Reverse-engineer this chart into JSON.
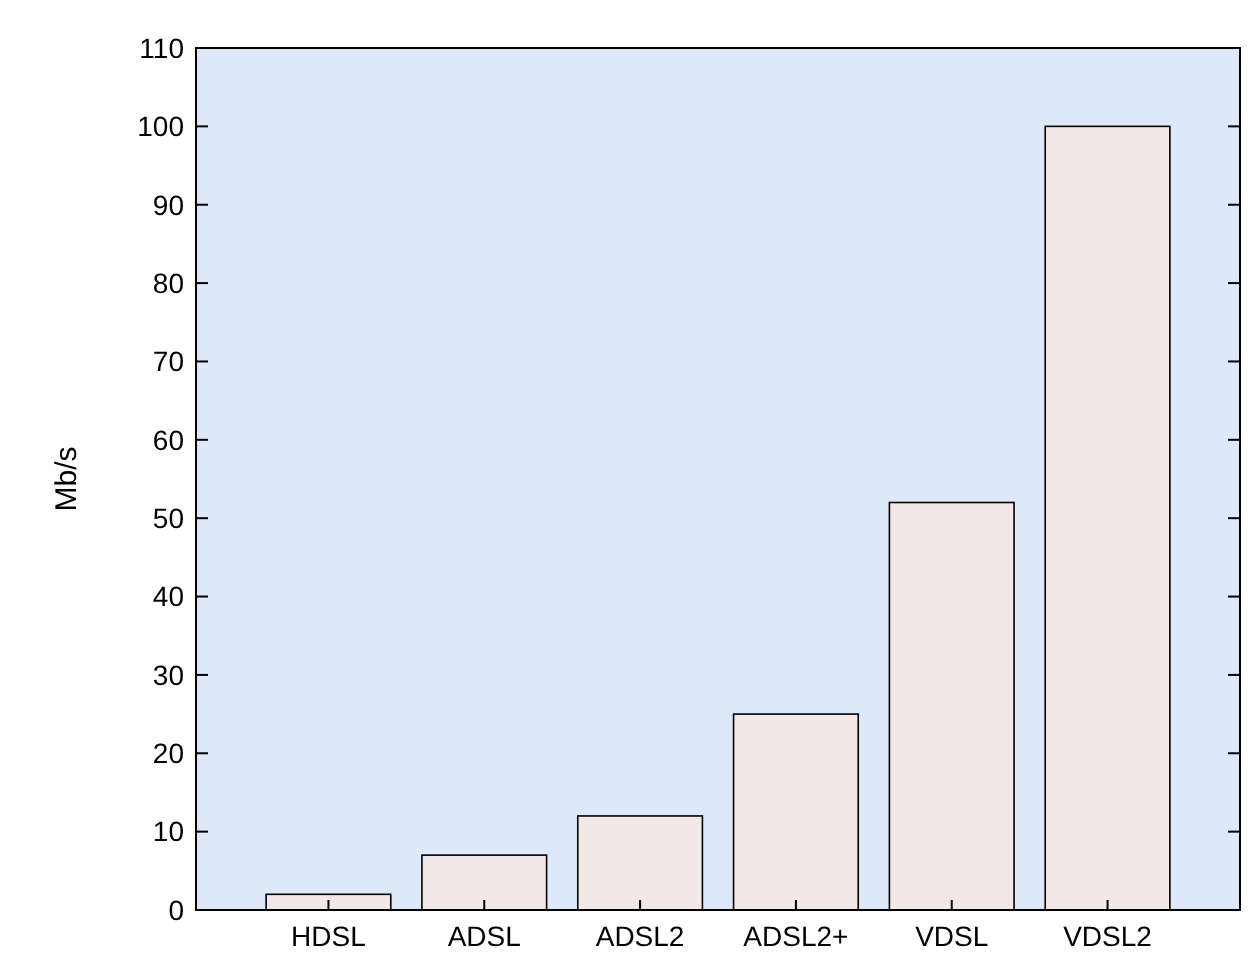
{
  "chart_data": {
    "type": "bar",
    "ylabel": "Mb/s",
    "categories": [
      "HDSL",
      "ADSL",
      "ADSL2",
      "ADSL2+",
      "VDSL",
      "VDSL2"
    ],
    "values": [
      2,
      7,
      12,
      25,
      52,
      100
    ],
    "color": "#f4e8e6",
    "ylim": [
      0,
      110
    ],
    "yticks": [
      0,
      10,
      20,
      30,
      40,
      50,
      60,
      70,
      80,
      90,
      100,
      110
    ],
    "grid": false
  }
}
